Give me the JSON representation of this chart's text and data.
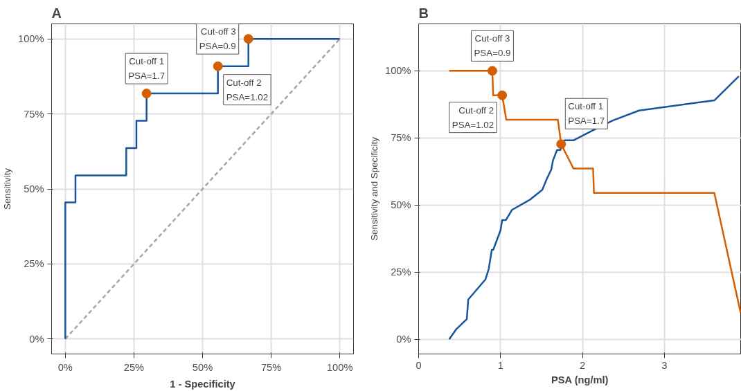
{
  "chart_data": [
    {
      "type": "step",
      "title": "A",
      "xlabel": "1 - Specificity",
      "ylabel": "Sensitivity",
      "xlim": [
        -5,
        105
      ],
      "ylim": [
        -5,
        105
      ],
      "xticks": [
        {
          "value": 0,
          "label": "0%"
        },
        {
          "value": 25,
          "label": "25%"
        },
        {
          "value": 50,
          "label": "50%"
        },
        {
          "value": 75,
          "label": "75%"
        },
        {
          "value": 100,
          "label": "100%"
        }
      ],
      "yticks": [
        {
          "value": 0,
          "label": "0%"
        },
        {
          "value": 25,
          "label": "25%"
        },
        {
          "value": 50,
          "label": "50%"
        },
        {
          "value": 75,
          "label": "75%"
        },
        {
          "value": 100,
          "label": "100%"
        }
      ],
      "grid": true,
      "series": [
        {
          "type": "line",
          "color": "#a6a6a6",
          "line_style": "dashed",
          "x": [
            0,
            100
          ],
          "values": [
            0,
            100
          ]
        },
        {
          "color": "#17569b",
          "x": [
            0,
            0,
            3.7,
            22.2,
            25.9,
            29.6,
            55.6,
            66.7,
            100
          ],
          "values": [
            0,
            45.5,
            54.5,
            63.6,
            72.7,
            81.8,
            90.9,
            100,
            100
          ]
        },
        {
          "type": "scatter",
          "color": "#d55e00",
          "marker": "circle",
          "x": [
            29.6,
            55.6,
            66.7
          ],
          "values": [
            81.8,
            90.9,
            100
          ]
        }
      ],
      "annotations": [
        {
          "text": "Cut-off 1\nPSA=1.7",
          "x": 29.6,
          "y": 81.8
        },
        {
          "text": "Cut-off 2\nPSA=1.02",
          "x": 55.6,
          "y": 90.9
        },
        {
          "text": "Cut-off 3\nPSA=0.9",
          "x": 66.7,
          "y": 100
        }
      ]
    },
    {
      "type": "line",
      "title": "B",
      "xlabel": "PSA (ng/ml)",
      "ylabel": "Sensitivity and Specificity",
      "xlim": [
        0,
        3.94
      ],
      "ylim": [
        -5.5,
        117.5
      ],
      "xticks": [
        0,
        1,
        2,
        3
      ],
      "yticks": [
        {
          "value": 0,
          "label": "0%"
        },
        {
          "value": 25,
          "label": "25%"
        },
        {
          "value": 50,
          "label": "50%"
        },
        {
          "value": 75,
          "label": "75%"
        },
        {
          "value": 100,
          "label": "100%"
        }
      ],
      "grid": true,
      "series": [
        {
          "color": "#17569b",
          "x": [
            0.373,
            0.456,
            0.588,
            0.606,
            0.816,
            0.856,
            0.893,
            0.911,
            1.0,
            1.02,
            1.066,
            1.14,
            1.36,
            1.51,
            1.56,
            1.62,
            1.64,
            1.69,
            1.73,
            1.76,
            1.78,
            1.89,
            2.13,
            2.37,
            2.69,
            3.61,
            3.91
          ],
          "values": [
            0,
            3.6,
            7.5,
            14.8,
            22.3,
            26.2,
            33.3,
            33.3,
            40.6,
            44.4,
            44.4,
            48.2,
            52,
            55.7,
            59.4,
            63.3,
            66.6,
            70.5,
            70.5,
            73,
            74.1,
            74.1,
            77.9,
            81.5,
            85.2,
            89,
            98
          ]
        },
        {
          "color": "#d55e00",
          "x": [
            0.373,
            0.9,
            0.91,
            1.02,
            1.07,
            1.7,
            1.74,
            1.89,
            2.13,
            2.14,
            3.61,
            3.93
          ],
          "values": [
            100,
            100,
            90.9,
            90.9,
            81.8,
            81.8,
            72.7,
            63.6,
            63.6,
            54.5,
            54.5,
            10
          ]
        },
        {
          "type": "scatter",
          "color": "#d55e00",
          "marker": "circle",
          "x": [
            0.9,
            1.02,
            1.74
          ],
          "values": [
            100,
            90.9,
            72.7
          ]
        }
      ],
      "annotations": [
        {
          "text": "Cut-off 3\nPSA=0.9",
          "x": 0.9,
          "y": 100
        },
        {
          "text": "Cut-off 2\nPSA=1.02",
          "x": 1.02,
          "y": 90.9
        },
        {
          "text": "Cut-off 1\nPSA=1.7",
          "x": 1.74,
          "y": 72.7
        }
      ]
    }
  ]
}
